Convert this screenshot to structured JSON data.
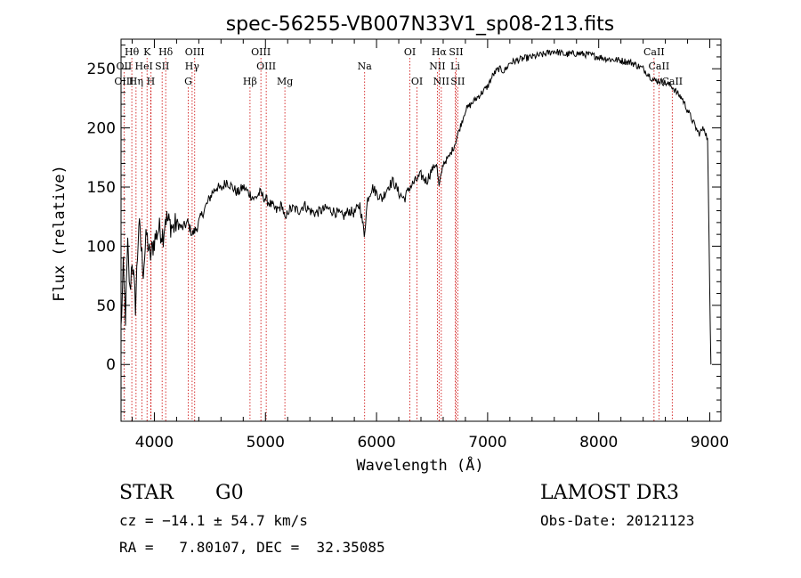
{
  "chart_data": {
    "type": "line",
    "title": "spec-56255-VB007N33V1_sp08-213.fits",
    "xlabel": "Wavelength (Å)",
    "ylabel": "Flux (relative)",
    "xlim": [
      3700,
      9100
    ],
    "ylim": [
      -48,
      275
    ],
    "xticks": [
      4000,
      5000,
      6000,
      7000,
      8000,
      9000
    ],
    "xtick_labels": [
      "4000",
      "5000",
      "6000",
      "7000",
      "8000",
      "9000"
    ],
    "yticks": [
      0,
      50,
      100,
      150,
      200,
      250
    ],
    "ytick_labels": [
      "0",
      "50",
      "100",
      "150",
      "200",
      "250"
    ],
    "series": [
      {
        "name": "spectrum",
        "x": [
          3700,
          3720,
          3740,
          3760,
          3780,
          3800,
          3830,
          3860,
          3900,
          3930,
          3960,
          4000,
          4040,
          4080,
          4100,
          4130,
          4170,
          4200,
          4250,
          4300,
          4340,
          4380,
          4420,
          4470,
          4520,
          4560,
          4600,
          4650,
          4700,
          4750,
          4800,
          4850,
          4900,
          4950,
          5000,
          5050,
          5100,
          5150,
          5180,
          5200,
          5250,
          5300,
          5350,
          5400,
          5450,
          5500,
          5550,
          5600,
          5650,
          5700,
          5750,
          5800,
          5850,
          5890,
          5920,
          5960,
          6000,
          6050,
          6100,
          6150,
          6200,
          6250,
          6300,
          6350,
          6400,
          6450,
          6500,
          6540,
          6563,
          6600,
          6650,
          6700,
          6750,
          6800,
          6850,
          6900,
          6950,
          7000,
          7050,
          7100,
          7150,
          7200,
          7300,
          7400,
          7500,
          7600,
          7700,
          7800,
          7900,
          8000,
          8100,
          8200,
          8300,
          8400,
          8450,
          8498,
          8540,
          8600,
          8662,
          8700,
          8750,
          8800,
          8850,
          8900,
          8950,
          8980,
          9000,
          9010
        ],
        "y": [
          30,
          80,
          40,
          100,
          60,
          90,
          50,
          120,
          80,
          110,
          90,
          105,
          115,
          110,
          125,
          120,
          115,
          120,
          115,
          120,
          110,
          115,
          125,
          135,
          145,
          150,
          148,
          155,
          150,
          145,
          150,
          145,
          140,
          145,
          140,
          135,
          130,
          135,
          120,
          130,
          132,
          130,
          135,
          130,
          128,
          130,
          132,
          130,
          128,
          125,
          130,
          128,
          135,
          110,
          140,
          150,
          145,
          140,
          150,
          155,
          145,
          140,
          150,
          155,
          160,
          155,
          165,
          170,
          150,
          170,
          175,
          185,
          200,
          215,
          220,
          225,
          230,
          235,
          245,
          250,
          248,
          255,
          258,
          260,
          262,
          265,
          262,
          263,
          262,
          260,
          258,
          257,
          255,
          250,
          245,
          240,
          240,
          238,
          235,
          230,
          225,
          215,
          205,
          195,
          200,
          190,
          60,
          0
        ]
      }
    ],
    "lines": [
      {
        "label": "Hθ",
        "wl": 3797,
        "row": 1
      },
      {
        "label": "K",
        "wl": 3934,
        "row": 1
      },
      {
        "label": "Hδ",
        "wl": 4102,
        "row": 1
      },
      {
        "label": "OIII",
        "wl": 4363,
        "row": 1
      },
      {
        "label": "OIII",
        "wl": 4959,
        "row": 1
      },
      {
        "label": "OI",
        "wl": 6300,
        "row": 1
      },
      {
        "label": "Hα",
        "wl": 6563,
        "row": 1
      },
      {
        "label": "SII",
        "wl": 6716,
        "row": 1
      },
      {
        "label": "CaII",
        "wl": 8498,
        "row": 1
      },
      {
        "label": "OII",
        "wl": 3727,
        "row": 2
      },
      {
        "label": "He",
        "wl": 3889,
        "row": 2
      },
      {
        "label": "I",
        "wl": 3970,
        "row": 2
      },
      {
        "label": "SII",
        "wl": 4070,
        "row": 2
      },
      {
        "label": "Hγ",
        "wl": 4340,
        "row": 2
      },
      {
        "label": "OIII",
        "wl": 5007,
        "row": 2
      },
      {
        "label": "Na",
        "wl": 5893,
        "row": 2
      },
      {
        "label": "NII",
        "wl": 6548,
        "row": 2
      },
      {
        "label": "Li",
        "wl": 6708,
        "row": 2
      },
      {
        "label": "CaII",
        "wl": 8542,
        "row": 2
      },
      {
        "label": "OIII",
        "wl": 3727,
        "row": 3
      },
      {
        "label": "Hη",
        "wl": 3835,
        "row": 3
      },
      {
        "label": "H",
        "wl": 3968,
        "row": 3
      },
      {
        "label": "G",
        "wl": 4305,
        "row": 3
      },
      {
        "label": "Hβ",
        "wl": 4861,
        "row": 3
      },
      {
        "label": "Mg",
        "wl": 5175,
        "row": 3
      },
      {
        "label": "OI",
        "wl": 6364,
        "row": 3
      },
      {
        "label": "NII",
        "wl": 6583,
        "row": 3
      },
      {
        "label": "SII",
        "wl": 6731,
        "row": 3
      },
      {
        "label": "CaII",
        "wl": 8662,
        "row": 3
      }
    ]
  },
  "info": {
    "obj_class": "STAR",
    "obj_subclass": "G0",
    "cz": "cz = −14.1 ± 54.7 km/s",
    "radec": "RA =   7.80107, DEC =  32.35085",
    "survey": "LAMOST DR3",
    "obs_date": "Obs-Date: 20121123"
  },
  "colors": {
    "spectrum": "#000000",
    "line_markers": "#cc0000",
    "axes": "#000000"
  }
}
